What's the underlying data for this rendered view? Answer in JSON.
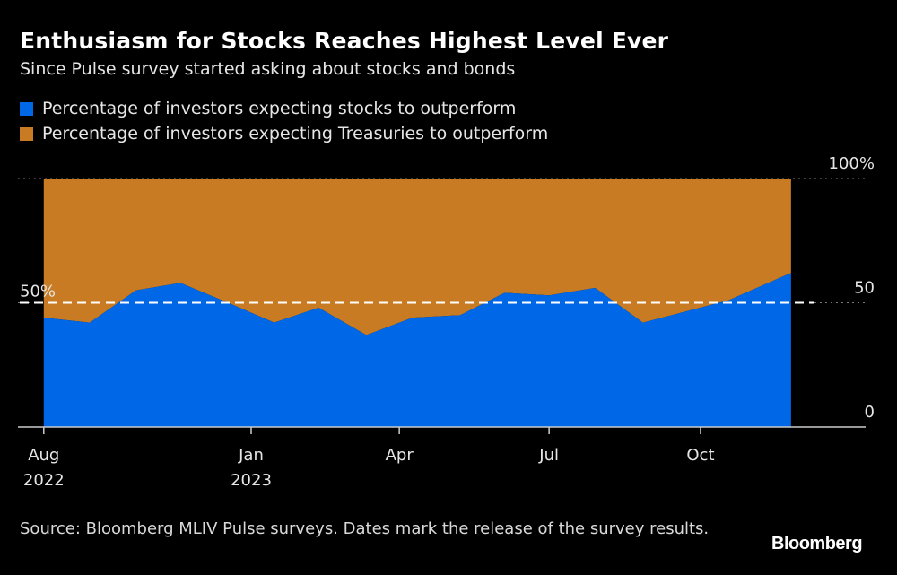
{
  "chart_data": {
    "type": "area",
    "stacked": true,
    "title": "Enthusiasm for Stocks Reaches Highest Level Ever",
    "subtitle": "Since Pulse survey started asking about stocks and bonds",
    "x": [
      "2022-08-28",
      "2022-09-25",
      "2022-10-23",
      "2022-11-19",
      "2022-12-18",
      "2023-01-15",
      "2023-02-11",
      "2023-03-12",
      "2023-04-09",
      "2023-05-08",
      "2023-06-04",
      "2023-07-01",
      "2023-07-29",
      "2023-08-27",
      "2023-09-25",
      "2023-10-18",
      "2023-11-25"
    ],
    "series": [
      {
        "name": "Percentage of investors expecting stocks to outperform",
        "color": "#0068e6",
        "values": [
          44,
          42,
          55,
          58,
          50,
          42,
          48,
          37,
          44,
          45,
          54,
          53,
          56,
          42,
          47,
          51,
          62
        ]
      },
      {
        "name": "Percentage of investors expecting Treasuries to outperform",
        "color": "#c87b22",
        "values": [
          56,
          58,
          45,
          42,
          50,
          58,
          52,
          63,
          56,
          55,
          46,
          47,
          44,
          58,
          53,
          49,
          38
        ]
      }
    ],
    "x_ticks": [
      {
        "date": "2022-08-28",
        "label": "Aug",
        "sublabel": "2022"
      },
      {
        "date": "2023-01-01",
        "label": "Jan",
        "sublabel": "2023"
      },
      {
        "date": "2023-04-01",
        "label": "Apr",
        "sublabel": ""
      },
      {
        "date": "2023-07-01",
        "label": "Jul",
        "sublabel": ""
      },
      {
        "date": "2023-10-01",
        "label": "Oct",
        "sublabel": ""
      }
    ],
    "y_ticks": [
      {
        "value": 100,
        "label": "100%"
      },
      {
        "value": 50,
        "label": "50"
      },
      {
        "value": 0,
        "label": "0"
      }
    ],
    "reference_line": {
      "value": 50,
      "label": "50%",
      "style": "dashed"
    },
    "ylim": [
      0,
      100
    ],
    "y_axis_side": "right",
    "legend_placement": "top-left",
    "grid": true
  },
  "source": "Source: Bloomberg MLIV Pulse surveys. Dates mark the release of the survey results.",
  "logo": "Bloomberg"
}
